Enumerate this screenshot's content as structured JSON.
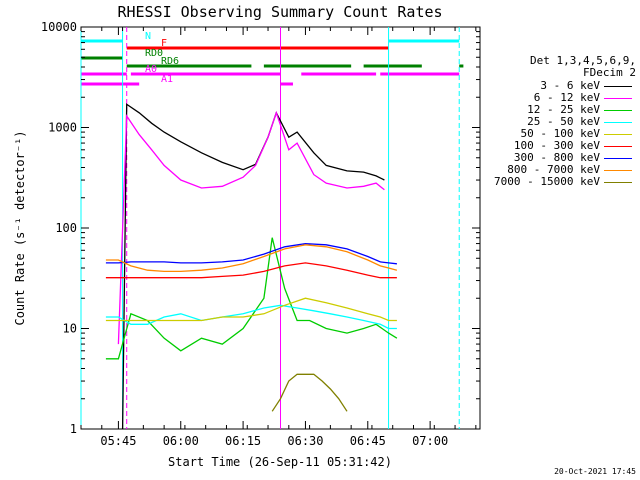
{
  "chart_data": {
    "type": "line",
    "title": "RHESSI Observing Summary Count Rates",
    "xlabel": "Start Time (26-Sep-11 05:31:42)",
    "ylabel": "Count Rate (s⁻¹ detector⁻¹)",
    "y_scale": "log",
    "ylim": [
      1,
      10000
    ],
    "xlim_minutes": [
      "05:36",
      "07:12"
    ],
    "x_ticks": [
      "05:45",
      "06:00",
      "06:15",
      "06:30",
      "06:45",
      "07:00"
    ],
    "y_ticks": [
      "1",
      "10",
      "100",
      "1000",
      "10000"
    ],
    "legend_header": [
      "Det 1,3,4,5,6,9,",
      "FDecim 2"
    ],
    "series": [
      {
        "name": "3 - 6 keV",
        "color": "#000000",
        "x": [
          "05:46",
          "05:47",
          "05:50",
          "05:53",
          "05:56",
          "06:00",
          "06:05",
          "06:10",
          "06:15",
          "06:18",
          "06:21",
          "06:23",
          "06:26",
          "06:28",
          "06:32",
          "06:35",
          "06:40",
          "06:44",
          "06:47",
          "06:49"
        ],
        "values": [
          1,
          1700,
          1400,
          1100,
          900,
          720,
          560,
          450,
          380,
          430,
          800,
          1400,
          800,
          900,
          560,
          420,
          370,
          360,
          330,
          300
        ]
      },
      {
        "name": "6 - 12 keV",
        "color": "#ff00ff",
        "x": [
          "05:45",
          "05:47",
          "05:50",
          "05:53",
          "05:56",
          "06:00",
          "06:05",
          "06:10",
          "06:15",
          "06:18",
          "06:21",
          "06:23",
          "06:26",
          "06:28",
          "06:32",
          "06:35",
          "06:40",
          "06:44",
          "06:47",
          "06:49"
        ],
        "values": [
          7,
          1300,
          850,
          600,
          420,
          300,
          250,
          260,
          320,
          420,
          800,
          1400,
          600,
          700,
          340,
          280,
          250,
          260,
          280,
          240
        ]
      },
      {
        "name": "12 - 25 keV",
        "color": "#00cc00",
        "x": [
          "05:42",
          "05:45",
          "05:48",
          "05:52",
          "05:56",
          "06:00",
          "06:05",
          "06:10",
          "06:15",
          "06:20",
          "06:22",
          "06:25",
          "06:28",
          "06:31",
          "06:35",
          "06:40",
          "06:44",
          "06:47",
          "06:50",
          "06:52"
        ],
        "values": [
          5,
          5,
          14,
          12,
          8,
          6,
          8,
          7,
          10,
          20,
          80,
          25,
          12,
          12,
          10,
          9,
          10,
          11,
          9,
          8
        ]
      },
      {
        "name": "25 - 50 keV",
        "color": "#00ffff",
        "x": [
          "05:42",
          "05:45",
          "05:48",
          "05:52",
          "05:56",
          "06:00",
          "06:05",
          "06:10",
          "06:15",
          "06:20",
          "06:24",
          "06:28",
          "06:32",
          "06:36",
          "06:40",
          "06:44",
          "06:48",
          "06:50",
          "06:52"
        ],
        "values": [
          13,
          13,
          11,
          11,
          13,
          14,
          12,
          13,
          14,
          16,
          17,
          16,
          15,
          14,
          13,
          12,
          11,
          10,
          10
        ]
      },
      {
        "name": "50 - 100 keV",
        "color": "#cccc00",
        "x": [
          "05:42",
          "05:45",
          "05:48",
          "05:52",
          "05:56",
          "06:00",
          "06:05",
          "06:10",
          "06:15",
          "06:20",
          "06:25",
          "06:30",
          "06:35",
          "06:40",
          "06:45",
          "06:48",
          "06:50",
          "06:52"
        ],
        "values": [
          12,
          12,
          12,
          12,
          12,
          12,
          12,
          13,
          13,
          14,
          17,
          20,
          18,
          16,
          14,
          13,
          12,
          12
        ]
      },
      {
        "name": "100 - 300 keV",
        "color": "#ff0000",
        "x": [
          "05:42",
          "05:45",
          "05:48",
          "05:52",
          "05:56",
          "06:00",
          "06:05",
          "06:10",
          "06:15",
          "06:20",
          "06:25",
          "06:30",
          "06:35",
          "06:40",
          "06:45",
          "06:48",
          "06:50",
          "06:52"
        ],
        "values": [
          32,
          32,
          32,
          32,
          32,
          32,
          32,
          33,
          34,
          37,
          42,
          45,
          42,
          38,
          34,
          32,
          32,
          32
        ]
      },
      {
        "name": "300 - 800 keV",
        "color": "#0000ff",
        "x": [
          "05:42",
          "05:45",
          "05:48",
          "05:52",
          "05:56",
          "06:00",
          "06:05",
          "06:10",
          "06:15",
          "06:20",
          "06:25",
          "06:30",
          "06:35",
          "06:40",
          "06:45",
          "06:48",
          "06:50",
          "06:52"
        ],
        "values": [
          45,
          45,
          46,
          46,
          46,
          45,
          45,
          46,
          48,
          55,
          65,
          70,
          68,
          62,
          52,
          46,
          45,
          44
        ]
      },
      {
        "name": "800 - 7000 keV",
        "color": "#ff8800",
        "x": [
          "05:42",
          "05:45",
          "05:48",
          "05:52",
          "05:56",
          "06:00",
          "06:05",
          "06:10",
          "06:15",
          "06:20",
          "06:25",
          "06:30",
          "06:35",
          "06:40",
          "06:45",
          "06:48",
          "06:50",
          "06:52"
        ],
        "values": [
          48,
          48,
          42,
          38,
          37,
          37,
          38,
          40,
          44,
          52,
          62,
          68,
          65,
          58,
          48,
          42,
          40,
          38
        ]
      },
      {
        "name": "7000 - 15000 keV",
        "color": "#808000",
        "x": [
          "06:22",
          "06:24",
          "06:26",
          "06:28",
          "06:30",
          "06:32",
          "06:34",
          "06:36",
          "06:38",
          "06:40"
        ],
        "values": [
          1.5,
          2,
          3,
          3.5,
          3.5,
          3.5,
          3,
          2.5,
          2,
          1.5
        ]
      }
    ],
    "flag_bars": [
      {
        "label": "N",
        "color": "#00ffff",
        "segments": [
          [
            "05:36",
            "05:46"
          ],
          [
            "06:50",
            "07:07"
          ]
        ]
      },
      {
        "label": "F",
        "color": "#ff0000",
        "segments": [
          [
            "05:47",
            "06:50"
          ]
        ]
      },
      {
        "label": "RD0",
        "color": "#008000",
        "segments": [
          [
            "05:36",
            "05:46"
          ]
        ]
      },
      {
        "label": "RD6",
        "color": "#008000",
        "segments": [
          [
            "05:47",
            "06:17"
          ],
          [
            "06:20",
            "06:41"
          ],
          [
            "06:44",
            "06:58"
          ],
          [
            "07:07",
            "07:08"
          ]
        ]
      },
      {
        "label": "A0",
        "color": "#ff00ff",
        "segments": [
          [
            "05:36",
            "05:47"
          ],
          [
            "05:48",
            "06:24"
          ],
          [
            "06:29",
            "06:47"
          ],
          [
            "06:48",
            "07:07"
          ]
        ]
      },
      {
        "label": "A1",
        "color": "#ff00ff",
        "segments": [
          [
            "05:36",
            "05:50"
          ],
          [
            "06:24",
            "06:27"
          ]
        ]
      }
    ],
    "vlines": [
      {
        "at": "05:36",
        "color": "#00ffff",
        "style": "solid"
      },
      {
        "at": "05:46",
        "color": "#00ffff",
        "style": "solid"
      },
      {
        "at": "05:47",
        "color": "#ff00ff",
        "style": "dashed"
      },
      {
        "at": "06:24",
        "color": "#ff00ff",
        "style": "solid"
      },
      {
        "at": "06:50",
        "color": "#00ffff",
        "style": "solid"
      },
      {
        "at": "07:07",
        "color": "#00ffff",
        "style": "dashed"
      }
    ]
  },
  "stamp": "20-Oct-2021 17:45"
}
